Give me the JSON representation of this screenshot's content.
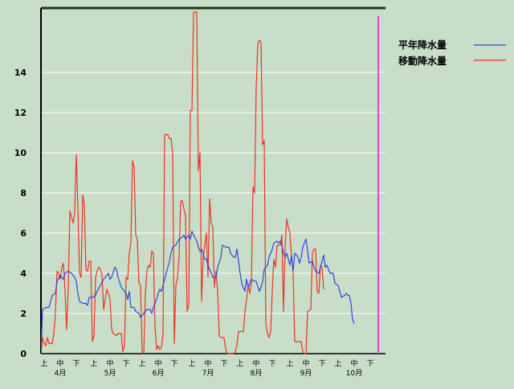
{
  "colors": {
    "background": "#c8dec8",
    "grid": "#ffffff",
    "axis": "#000000",
    "frame_top": "#1a3a1a",
    "average_series": "#3344dd",
    "moving_series": "#ee3322",
    "marker": "#cc55cc"
  },
  "chart_data": {
    "type": "line",
    "ylim": [
      0,
      17
    ],
    "yticks": [
      0,
      2,
      4,
      6,
      8,
      10,
      12,
      14
    ],
    "grid": true,
    "legend_position": "top-right",
    "x_count": 195,
    "x_tick_labels": [
      "上",
      "中",
      "下",
      "上",
      "中",
      "下",
      "上",
      "中",
      "下",
      "上",
      "中",
      "下",
      "上",
      "中",
      "下",
      "上",
      "中",
      "下",
      "上",
      "中",
      "下"
    ],
    "x_tick_index": [
      2,
      12,
      22,
      33,
      43,
      53,
      63,
      73,
      83,
      94,
      104,
      114,
      124,
      134,
      144,
      155,
      165,
      175,
      185,
      195,
      205
    ],
    "month_labels": [
      "4月",
      "5月",
      "6月",
      "7月",
      "8月",
      "9月",
      "10月"
    ],
    "month_index": [
      12,
      43,
      73,
      104,
      134,
      165,
      195
    ],
    "marker_index": 210,
    "series": [
      {
        "name": "平年降水量",
        "key": "average",
        "points": [
          [
            0,
            0.0
          ],
          [
            1,
            2.2
          ],
          [
            3,
            2.3
          ],
          [
            5,
            2.3
          ],
          [
            6,
            2.6
          ],
          [
            7,
            2.9
          ],
          [
            9,
            3.0
          ],
          [
            10,
            3.6
          ],
          [
            12,
            3.9
          ],
          [
            14,
            3.7
          ],
          [
            15,
            4.0
          ],
          [
            17,
            4.1
          ],
          [
            19,
            4.0
          ],
          [
            21,
            3.8
          ],
          [
            22,
            3.6
          ],
          [
            23,
            3.0
          ],
          [
            24,
            2.6
          ],
          [
            26,
            2.5
          ],
          [
            28,
            2.5
          ],
          [
            29,
            2.4
          ],
          [
            30,
            2.8
          ],
          [
            32,
            2.8
          ],
          [
            34,
            2.9
          ],
          [
            35,
            3.1
          ],
          [
            37,
            3.4
          ],
          [
            39,
            3.7
          ],
          [
            40,
            3.8
          ],
          [
            42,
            4.0
          ],
          [
            43,
            3.7
          ],
          [
            44,
            3.8
          ],
          [
            46,
            4.3
          ],
          [
            47,
            4.2
          ],
          [
            48,
            3.8
          ],
          [
            50,
            3.3
          ],
          [
            52,
            3.1
          ],
          [
            53,
            3.0
          ],
          [
            54,
            2.7
          ],
          [
            55,
            3.1
          ],
          [
            56,
            2.3
          ],
          [
            58,
            2.3
          ],
          [
            59,
            2.1
          ],
          [
            61,
            2.0
          ],
          [
            62,
            1.8
          ],
          [
            64,
            2.0
          ],
          [
            66,
            2.2
          ],
          [
            68,
            2.2
          ],
          [
            69,
            2.0
          ],
          [
            70,
            2.3
          ],
          [
            72,
            2.7
          ],
          [
            73,
            3.0
          ],
          [
            74,
            3.2
          ],
          [
            75,
            3.1
          ],
          [
            76,
            3.4
          ],
          [
            78,
            4.0
          ],
          [
            80,
            4.6
          ],
          [
            81,
            5.0
          ],
          [
            82,
            5.3
          ],
          [
            84,
            5.4
          ],
          [
            86,
            5.7
          ],
          [
            88,
            5.8
          ],
          [
            89,
            5.9
          ],
          [
            90,
            5.7
          ],
          [
            92,
            5.9
          ],
          [
            93,
            5.7
          ],
          [
            94,
            6.1
          ],
          [
            95,
            5.9
          ],
          [
            97,
            5.6
          ],
          [
            98,
            5.3
          ],
          [
            99,
            5.1
          ],
          [
            100,
            5.2
          ],
          [
            102,
            4.7
          ],
          [
            103,
            4.7
          ],
          [
            104,
            4.4
          ],
          [
            106,
            4.0
          ],
          [
            107,
            3.8
          ],
          [
            109,
            3.8
          ],
          [
            110,
            4.3
          ],
          [
            112,
            4.8
          ],
          [
            113,
            5.4
          ],
          [
            115,
            5.3
          ],
          [
            117,
            5.3
          ],
          [
            118,
            5.0
          ],
          [
            120,
            4.8
          ],
          [
            121,
            4.8
          ],
          [
            122,
            5.2
          ],
          [
            123,
            4.6
          ],
          [
            124,
            4.0
          ],
          [
            125,
            3.5
          ],
          [
            127,
            3.1
          ],
          [
            128,
            3.7
          ],
          [
            129,
            3.3
          ],
          [
            131,
            3.7
          ],
          [
            133,
            3.6
          ],
          [
            134,
            3.6
          ],
          [
            136,
            3.1
          ],
          [
            137,
            3.3
          ],
          [
            138,
            3.6
          ],
          [
            139,
            4.2
          ],
          [
            141,
            4.4
          ],
          [
            142,
            4.8
          ],
          [
            144,
            5.2
          ],
          [
            145,
            5.5
          ],
          [
            147,
            5.6
          ],
          [
            148,
            5.5
          ],
          [
            149,
            5.6
          ],
          [
            150,
            5.4
          ],
          [
            151,
            5.0
          ],
          [
            152,
            4.8
          ],
          [
            153,
            5.0
          ],
          [
            155,
            4.4
          ],
          [
            156,
            4.9
          ],
          [
            157,
            4.1
          ],
          [
            158,
            5.0
          ],
          [
            160,
            4.8
          ],
          [
            161,
            4.5
          ],
          [
            162,
            4.8
          ],
          [
            163,
            5.3
          ],
          [
            165,
            5.7
          ],
          [
            166,
            5.1
          ],
          [
            167,
            4.5
          ],
          [
            169,
            4.6
          ],
          [
            170,
            4.3
          ],
          [
            171,
            4.1
          ],
          [
            173,
            4.0
          ],
          [
            174,
            4.3
          ],
          [
            176,
            4.9
          ],
          [
            177,
            4.3
          ],
          [
            178,
            4.4
          ],
          [
            180,
            4.0
          ],
          [
            182,
            4.0
          ],
          [
            183,
            3.5
          ],
          [
            185,
            3.4
          ],
          [
            186,
            3.1
          ],
          [
            187,
            2.8
          ],
          [
            189,
            2.9
          ],
          [
            190,
            3.0
          ],
          [
            191,
            2.9
          ],
          [
            192,
            2.9
          ],
          [
            193,
            2.5
          ],
          [
            194,
            1.7
          ],
          [
            195,
            1.5
          ]
        ]
      },
      {
        "name": "移動降水量",
        "key": "moving",
        "points": [
          [
            0,
            0.0
          ],
          [
            1,
            0.8
          ],
          [
            2,
            0.5
          ],
          [
            3,
            0.4
          ],
          [
            4,
            0.8
          ],
          [
            5,
            0.5
          ],
          [
            7,
            0.5
          ],
          [
            8,
            1.0
          ],
          [
            9,
            2.0
          ],
          [
            10,
            4.1
          ],
          [
            11,
            4.0
          ],
          [
            12,
            3.7
          ],
          [
            13,
            4.3
          ],
          [
            14,
            4.5
          ],
          [
            15,
            3.1
          ],
          [
            16,
            1.2
          ],
          [
            17,
            3.2
          ],
          [
            18,
            7.1
          ],
          [
            19,
            6.8
          ],
          [
            20,
            6.5
          ],
          [
            21,
            7.0
          ],
          [
            22,
            9.9
          ],
          [
            23,
            7.3
          ],
          [
            24,
            4.0
          ],
          [
            25,
            3.8
          ],
          [
            26,
            7.9
          ],
          [
            27,
            7.4
          ],
          [
            28,
            4.2
          ],
          [
            29,
            4.1
          ],
          [
            30,
            4.6
          ],
          [
            31,
            4.6
          ],
          [
            32,
            0.6
          ],
          [
            33,
            0.9
          ],
          [
            34,
            3.8
          ],
          [
            35,
            4.1
          ],
          [
            36,
            4.3
          ],
          [
            37,
            4.2
          ],
          [
            38,
            3.9
          ],
          [
            39,
            2.2
          ],
          [
            40,
            2.7
          ],
          [
            41,
            3.2
          ],
          [
            42,
            3.0
          ],
          [
            43,
            2.7
          ],
          [
            44,
            1.2
          ],
          [
            45,
            1.0
          ],
          [
            47,
            0.9
          ],
          [
            48,
            1.0
          ],
          [
            50,
            1.0
          ],
          [
            51,
            0.1
          ],
          [
            52,
            0.4
          ],
          [
            53,
            3.8
          ],
          [
            54,
            3.7
          ],
          [
            55,
            5.0
          ],
          [
            56,
            5.5
          ],
          [
            57,
            9.6
          ],
          [
            58,
            9.3
          ],
          [
            59,
            5.9
          ],
          [
            60,
            5.7
          ],
          [
            61,
            3.5
          ],
          [
            62,
            3.4
          ],
          [
            63,
            0.1
          ],
          [
            64,
            0.0
          ],
          [
            65,
            3.0
          ],
          [
            66,
            4.1
          ],
          [
            67,
            4.4
          ],
          [
            68,
            4.3
          ],
          [
            69,
            5.1
          ],
          [
            70,
            5.0
          ],
          [
            71,
            1.3
          ],
          [
            72,
            0.2
          ],
          [
            73,
            0.4
          ],
          [
            74,
            0.2
          ],
          [
            75,
            0.3
          ],
          [
            76,
            1.0
          ],
          [
            77,
            10.9
          ],
          [
            79,
            10.9
          ],
          [
            80,
            10.7
          ],
          [
            81,
            10.7
          ],
          [
            82,
            10.0
          ],
          [
            83,
            0.5
          ],
          [
            84,
            3.4
          ],
          [
            85,
            3.8
          ],
          [
            86,
            4.8
          ],
          [
            87,
            7.6
          ],
          [
            88,
            7.6
          ],
          [
            89,
            7.2
          ],
          [
            90,
            6.9
          ],
          [
            91,
            2.1
          ],
          [
            92,
            2.4
          ],
          [
            93,
            12.1
          ],
          [
            94,
            12.1
          ],
          [
            95,
            17.0
          ],
          [
            96,
            17.0
          ],
          [
            97,
            17.0
          ],
          [
            98,
            9.1
          ],
          [
            99,
            10.0
          ],
          [
            100,
            2.6
          ],
          [
            101,
            4.8
          ],
          [
            102,
            5.4
          ],
          [
            103,
            6.0
          ],
          [
            104,
            3.8
          ],
          [
            105,
            7.7
          ],
          [
            106,
            6.5
          ],
          [
            107,
            6.3
          ],
          [
            108,
            3.3
          ],
          [
            109,
            4.1
          ],
          [
            110,
            3.1
          ],
          [
            111,
            0.9
          ],
          [
            112,
            0.8
          ],
          [
            114,
            0.8
          ],
          [
            115,
            0.2
          ],
          [
            116,
            0.0
          ],
          [
            120,
            0.0
          ],
          [
            121,
            0.1
          ],
          [
            122,
            0.4
          ],
          [
            123,
            1.1
          ],
          [
            126,
            1.1
          ],
          [
            127,
            2.1
          ],
          [
            128,
            2.7
          ],
          [
            129,
            3.4
          ],
          [
            130,
            3.0
          ],
          [
            131,
            3.5
          ],
          [
            132,
            8.3
          ],
          [
            133,
            8.0
          ],
          [
            134,
            13.2
          ],
          [
            135,
            15.4
          ],
          [
            136,
            15.6
          ],
          [
            137,
            15.5
          ],
          [
            138,
            10.4
          ],
          [
            139,
            10.6
          ],
          [
            140,
            1.5
          ],
          [
            141,
            1.0
          ],
          [
            142,
            0.8
          ],
          [
            143,
            1.1
          ],
          [
            144,
            3.1
          ],
          [
            145,
            4.7
          ],
          [
            146,
            4.3
          ],
          [
            147,
            5.4
          ],
          [
            149,
            5.4
          ],
          [
            150,
            5.9
          ],
          [
            151,
            2.1
          ],
          [
            152,
            5.3
          ],
          [
            153,
            6.7
          ],
          [
            154,
            6.3
          ],
          [
            155,
            6.0
          ],
          [
            156,
            4.8
          ],
          [
            157,
            4.0
          ],
          [
            158,
            0.6
          ],
          [
            161,
            0.6
          ],
          [
            162,
            0.6
          ],
          [
            163,
            0.1
          ],
          [
            164,
            0.0
          ],
          [
            165,
            0.0
          ],
          [
            166,
            2.1
          ],
          [
            168,
            2.2
          ],
          [
            169,
            5.0
          ],
          [
            170,
            5.2
          ],
          [
            171,
            5.2
          ],
          [
            172,
            3.1
          ],
          [
            173,
            3.0
          ],
          [
            174,
            4.4
          ],
          [
            175,
            4.3
          ],
          [
            176,
            3.2
          ]
        ]
      }
    ]
  }
}
